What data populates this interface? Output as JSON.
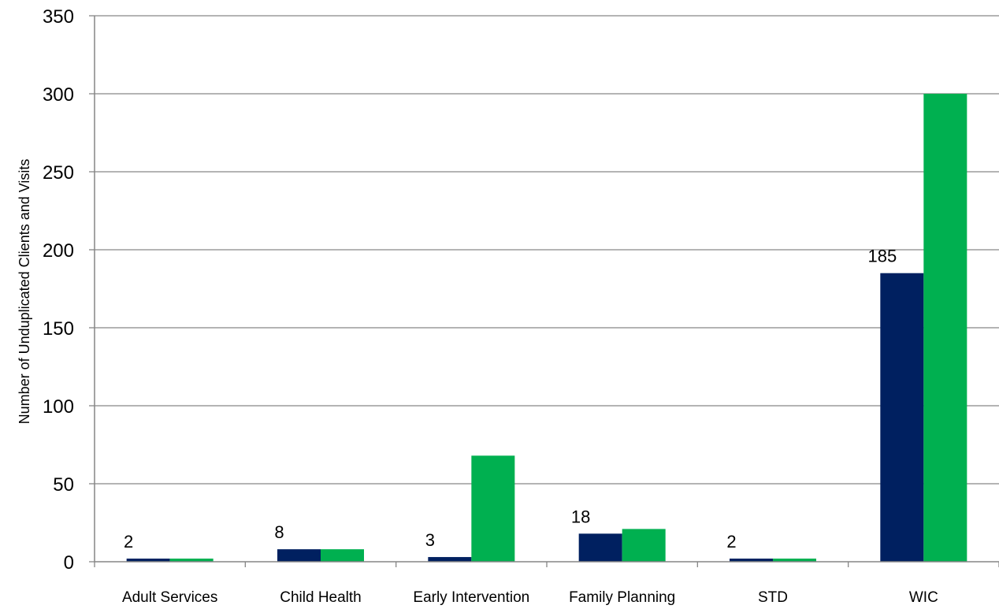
{
  "chart_data": {
    "type": "bar",
    "title": "",
    "xlabel": "",
    "ylabel": "Number of Unduplicated Clients and Visits",
    "ylim": [
      0,
      350
    ],
    "yticks": [
      0,
      50,
      100,
      150,
      200,
      250,
      300,
      350
    ],
    "grid": true,
    "legend": "none",
    "categories": [
      "Adult Services",
      "Child Health",
      "Early Intervention",
      "Family Planning",
      "STD",
      "WIC"
    ],
    "series": [
      {
        "color": "#002060",
        "values": [
          2,
          8,
          3,
          18,
          2,
          185
        ],
        "data_labels": [
          "2",
          "8",
          "3",
          "18",
          "2",
          "185"
        ]
      },
      {
        "color": "#00B050",
        "values": [
          2,
          8,
          68,
          21,
          2,
          300
        ]
      }
    ]
  }
}
